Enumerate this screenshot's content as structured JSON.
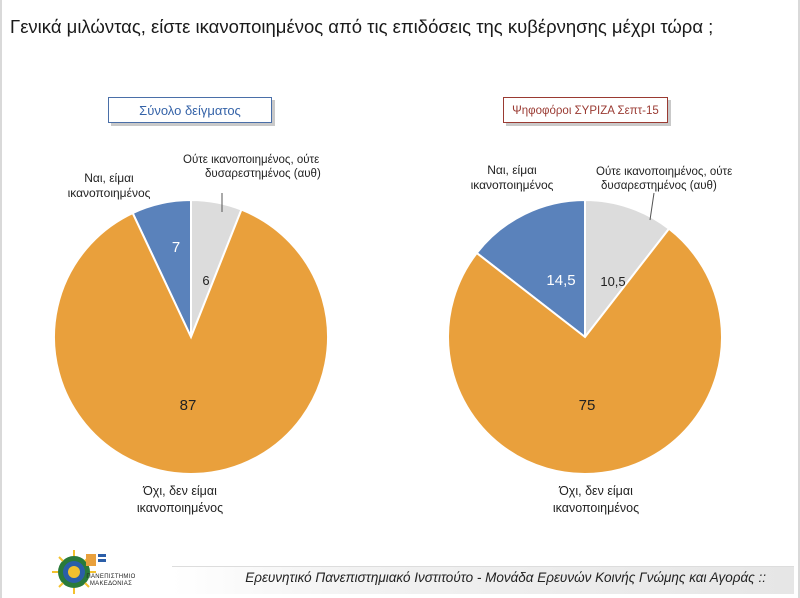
{
  "title": "Γενικά μιλώντας, είστε ικανοποιημένος από τις επιδόσεις της κυβέρνησης μέχρι τώρα ;",
  "colors": {
    "satisfied": "#5a82bb",
    "neither": "#dcdcdc",
    "not_satisfied": "#e9a03c",
    "left_tag": "#3563a8",
    "right_tag": "#9a3a32"
  },
  "chart_data": [
    {
      "type": "pie",
      "title": "Σύνολο δείγματος",
      "labels": [
        "Ναι, είμαι ικανοποιημένος",
        "Ούτε ικανοποιημένος, ούτε δυσαρεστημένος (αυθ)",
        "Όχι, δεν είμαι ικανοποιημένος"
      ],
      "values": [
        7,
        6,
        87
      ],
      "value_labels": [
        "7",
        "6",
        "87"
      ]
    },
    {
      "type": "pie",
      "title": "Ψηφοφόροι ΣΥΡΙΖΑ Σεπτ-15",
      "labels": [
        "Ναι, είμαι ικανοποιημένος",
        "Ούτε ικανοποιημένος, ούτε δυσαρεστημένος (αυθ)",
        "Όχι, δεν είμαι ικανοποιημένος"
      ],
      "values": [
        14.5,
        10.5,
        75
      ],
      "value_labels": [
        "14,5",
        "10,5",
        "75"
      ]
    }
  ],
  "footer": {
    "text": "Ερευνητικό Πανεπιστημιακό Ινστιτούτο - Μονάδα Ερευνών Κοινής Γνώμης και Αγοράς ::"
  },
  "logo": {
    "text": "ΠΑΝΕΠΙΣΤΗΜΙΟ ΜΑΚΕΔΟΝΙΑΣ"
  }
}
